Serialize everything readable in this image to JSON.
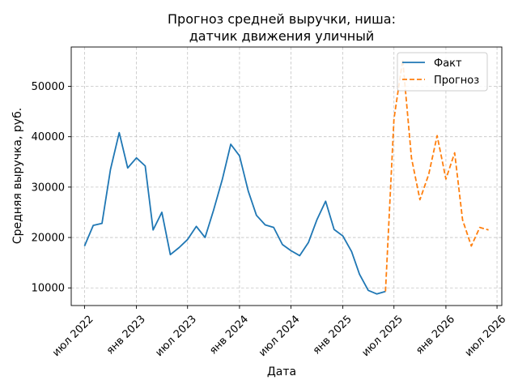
{
  "chart_data": {
    "type": "line",
    "title": "Прогноз средней выручки, ниша:\nдатчик движения уличный",
    "title_lines": [
      "Прогноз средней выручки, ниша:",
      "датчик движения уличный"
    ],
    "xlabel": "Дата",
    "ylabel": "Средняя выручка, руб.",
    "xlim": [
      "2022-05-15",
      "2026-07-18"
    ],
    "ylim": [
      6500,
      57800
    ],
    "grid": true,
    "legend_position": "top-right",
    "x_ticks": [
      {
        "date": "2022-07-01",
        "label": "июл 2022"
      },
      {
        "date": "2023-01-01",
        "label": "янв 2023"
      },
      {
        "date": "2023-07-01",
        "label": "июл 2023"
      },
      {
        "date": "2024-01-01",
        "label": "янв 2024"
      },
      {
        "date": "2024-07-01",
        "label": "июл 2024"
      },
      {
        "date": "2025-01-01",
        "label": "янв 2025"
      },
      {
        "date": "2025-07-01",
        "label": "июл 2025"
      },
      {
        "date": "2026-01-01",
        "label": "янв 2026"
      },
      {
        "date": "2026-07-01",
        "label": "июл 2026"
      }
    ],
    "y_ticks": [
      {
        "value": 10000,
        "label": "10000"
      },
      {
        "value": 20000,
        "label": "20000"
      },
      {
        "value": 30000,
        "label": "30000"
      },
      {
        "value": 40000,
        "label": "40000"
      },
      {
        "value": 50000,
        "label": "50000"
      }
    ],
    "series": [
      {
        "name": "Факт",
        "color": "#1f77b4",
        "style": "solid",
        "points": [
          [
            "2022-07-01",
            18300
          ],
          [
            "2022-08-01",
            22400
          ],
          [
            "2022-09-01",
            22800
          ],
          [
            "2022-10-01",
            33500
          ],
          [
            "2022-11-01",
            40800
          ],
          [
            "2022-12-01",
            33800
          ],
          [
            "2023-01-01",
            35800
          ],
          [
            "2023-02-01",
            34200
          ],
          [
            "2023-03-01",
            21500
          ],
          [
            "2023-04-01",
            25000
          ],
          [
            "2023-05-01",
            16600
          ],
          [
            "2023-06-01",
            18000
          ],
          [
            "2023-07-01",
            19600
          ],
          [
            "2023-08-01",
            22200
          ],
          [
            "2023-09-01",
            20000
          ],
          [
            "2023-10-01",
            25400
          ],
          [
            "2023-11-01",
            31500
          ],
          [
            "2023-12-01",
            38500
          ],
          [
            "2024-01-01",
            36200
          ],
          [
            "2024-02-01",
            29200
          ],
          [
            "2024-03-01",
            24400
          ],
          [
            "2024-04-01",
            22500
          ],
          [
            "2024-05-01",
            22000
          ],
          [
            "2024-06-01",
            18600
          ],
          [
            "2024-07-01",
            17400
          ],
          [
            "2024-08-01",
            16400
          ],
          [
            "2024-09-01",
            19000
          ],
          [
            "2024-10-01",
            23500
          ],
          [
            "2024-11-01",
            27200
          ],
          [
            "2024-12-01",
            21600
          ],
          [
            "2025-01-01",
            20300
          ],
          [
            "2025-02-01",
            17200
          ],
          [
            "2025-03-01",
            12700
          ],
          [
            "2025-04-01",
            9500
          ],
          [
            "2025-05-01",
            8800
          ],
          [
            "2025-06-01",
            9300
          ]
        ]
      },
      {
        "name": "Прогноз",
        "color": "#ff7f0e",
        "style": "dashed",
        "points": [
          [
            "2025-06-01",
            9300
          ],
          [
            "2025-07-01",
            43500
          ],
          [
            "2025-08-01",
            55300
          ],
          [
            "2025-09-01",
            35800
          ],
          [
            "2025-10-01",
            27500
          ],
          [
            "2025-11-01",
            32500
          ],
          [
            "2025-12-01",
            40200
          ],
          [
            "2026-01-01",
            31600
          ],
          [
            "2026-02-01",
            36800
          ],
          [
            "2026-03-01",
            23500
          ],
          [
            "2026-04-01",
            18300
          ],
          [
            "2026-05-01",
            22000
          ],
          [
            "2026-06-01",
            21500
          ]
        ]
      }
    ]
  }
}
